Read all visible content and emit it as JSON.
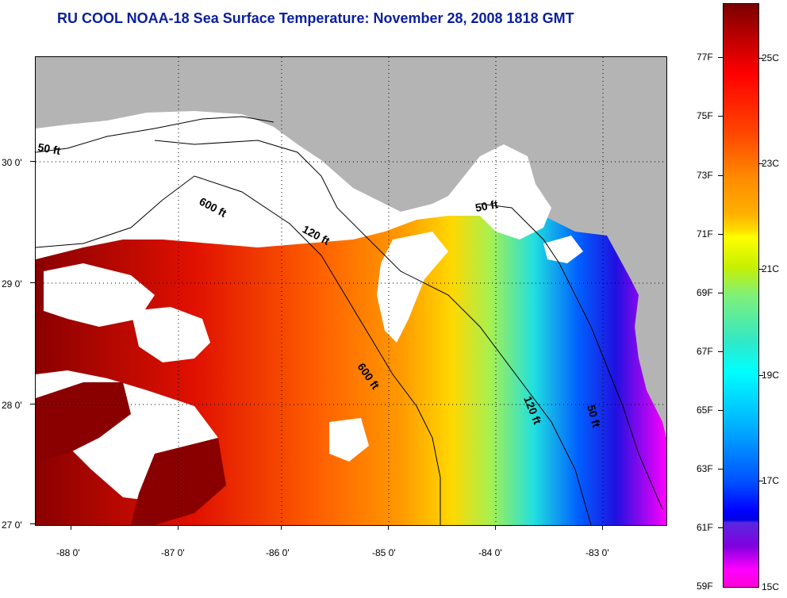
{
  "title": "RU COOL  NOAA-18  Sea Surface Temperature:  November 28, 2008 1818 GMT",
  "map": {
    "lat_labels": [
      "30 0'",
      "29 0'",
      "28 0'",
      "27 0'"
    ],
    "lon_labels": [
      "-88 0'",
      "-87 0'",
      "-86 0'",
      "-85 0'",
      "-84 0'",
      "-83 0'"
    ],
    "contour_labels": [
      "50 ft",
      "600 ft",
      "120 ft",
      "50 ft",
      "600 ft",
      "120 ft",
      "50 ft"
    ]
  },
  "colorbar": {
    "fahrenheit": [
      "77F",
      "75F",
      "73F",
      "71F",
      "69F",
      "67F",
      "65F",
      "63F",
      "61F",
      "59F"
    ],
    "celsius": [
      "25C",
      "23C",
      "21C",
      "19C",
      "17C",
      "15C"
    ]
  },
  "colors": {
    "title": "#0b1f9c",
    "land": "#b4b4b4",
    "cloud": "#ffffff",
    "warm": "#ff2a00",
    "cold": "#0000ff"
  }
}
